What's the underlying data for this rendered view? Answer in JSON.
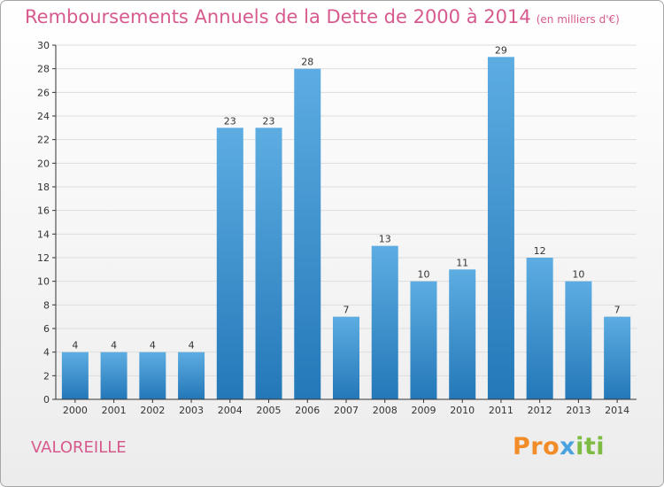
{
  "title": "Remboursements Annuels de la Dette de 2000 à 2014",
  "subtitle": "(en milliers d'€)",
  "commune": "VALOREILLE",
  "logo": {
    "part1": "Pro",
    "part2": "x",
    "part3": "iti"
  },
  "colors": {
    "title": "#d65a8e",
    "bar_light": "#5dade2",
    "bar_dark": "#2478b8",
    "grid": "#dddddd",
    "axis": "#333333"
  },
  "chart_data": {
    "type": "bar",
    "title": "Remboursements Annuels de la Dette de 2000 à 2014",
    "xlabel": "",
    "ylabel": "",
    "categories": [
      "2000",
      "2001",
      "2002",
      "2003",
      "2004",
      "2005",
      "2006",
      "2007",
      "2008",
      "2009",
      "2010",
      "2011",
      "2012",
      "2013",
      "2014"
    ],
    "values": [
      4,
      4,
      4,
      4,
      23,
      23,
      28,
      7,
      13,
      10,
      11,
      29,
      12,
      10,
      7
    ],
    "ylim": [
      0,
      30
    ],
    "yticks": [
      0,
      2,
      4,
      6,
      8,
      10,
      12,
      14,
      16,
      18,
      20,
      22,
      24,
      26,
      28,
      30
    ],
    "grid": true
  }
}
